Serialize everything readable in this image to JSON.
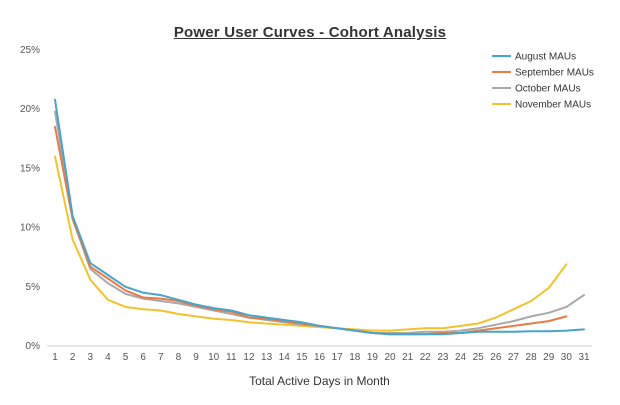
{
  "chart_data": {
    "type": "line",
    "title": "Power User Curves - Cohort Analysis",
    "xlabel": "Total Active Days in Month",
    "ylabel": "",
    "x": [
      1,
      2,
      3,
      4,
      5,
      6,
      7,
      8,
      9,
      10,
      11,
      12,
      13,
      14,
      15,
      16,
      17,
      18,
      19,
      20,
      21,
      22,
      23,
      24,
      25,
      26,
      27,
      28,
      29,
      30,
      31
    ],
    "ylim": [
      0,
      25
    ],
    "yticks": [
      "0%",
      "5%",
      "10%",
      "15%",
      "20%",
      "25%"
    ],
    "grid": false,
    "legend_position": "top-right",
    "series": [
      {
        "name": "August MAUs",
        "color": "#4aa3c8",
        "x": [
          1,
          2,
          3,
          4,
          5,
          6,
          7,
          8,
          9,
          10,
          11,
          12,
          13,
          14,
          15,
          16,
          17,
          18,
          19,
          20,
          21,
          22,
          23,
          24,
          25,
          26,
          27,
          28,
          29,
          30,
          31
        ],
        "values": [
          20.8,
          11.0,
          7.0,
          6.0,
          5.0,
          4.5,
          4.3,
          3.9,
          3.5,
          3.2,
          3.0,
          2.6,
          2.4,
          2.2,
          2.0,
          1.7,
          1.5,
          1.3,
          1.1,
          1.0,
          1.0,
          1.0,
          1.0,
          1.1,
          1.2,
          1.2,
          1.2,
          1.25,
          1.25,
          1.3,
          1.4
        ]
      },
      {
        "name": "September MAUs",
        "color": "#e57b45",
        "x": [
          1,
          2,
          3,
          4,
          5,
          6,
          7,
          8,
          9,
          10,
          11,
          12,
          13,
          14,
          15,
          16,
          17,
          18,
          19,
          20,
          21,
          22,
          23,
          24,
          25,
          26,
          27,
          28,
          29,
          30
        ],
        "values": [
          18.5,
          10.7,
          6.7,
          5.7,
          4.7,
          4.1,
          4.0,
          3.8,
          3.4,
          3.1,
          2.9,
          2.4,
          2.3,
          2.1,
          1.9,
          1.7,
          1.5,
          1.3,
          1.1,
          1.0,
          1.0,
          1.0,
          1.1,
          1.1,
          1.3,
          1.5,
          1.7,
          1.9,
          2.1,
          2.5
        ]
      },
      {
        "name": "October MAUs",
        "color": "#a8a8a8",
        "x": [
          1,
          2,
          3,
          4,
          5,
          6,
          7,
          8,
          9,
          10,
          11,
          12,
          13,
          14,
          15,
          16,
          17,
          18,
          19,
          20,
          21,
          22,
          23,
          24,
          25,
          26,
          27,
          28,
          29,
          30,
          31
        ],
        "values": [
          19.8,
          10.8,
          6.5,
          5.3,
          4.4,
          4.0,
          3.8,
          3.6,
          3.3,
          3.0,
          2.7,
          2.4,
          2.2,
          2.0,
          1.8,
          1.7,
          1.5,
          1.3,
          1.1,
          1.1,
          1.1,
          1.2,
          1.2,
          1.3,
          1.5,
          1.8,
          2.1,
          2.5,
          2.8,
          3.3,
          4.3
        ]
      },
      {
        "name": "November MAUs",
        "color": "#f2c12e",
        "x": [
          1,
          2,
          3,
          4,
          5,
          6,
          7,
          8,
          9,
          10,
          11,
          12,
          13,
          14,
          15,
          16,
          17,
          18,
          19,
          20,
          21,
          22,
          23,
          24,
          25,
          26,
          27,
          28,
          29,
          30
        ],
        "values": [
          16.0,
          9.0,
          5.6,
          3.9,
          3.3,
          3.1,
          3.0,
          2.7,
          2.5,
          2.3,
          2.2,
          2.0,
          1.9,
          1.8,
          1.7,
          1.6,
          1.5,
          1.4,
          1.3,
          1.3,
          1.4,
          1.5,
          1.5,
          1.7,
          1.9,
          2.4,
          3.1,
          3.8,
          4.9,
          6.9
        ]
      }
    ]
  }
}
